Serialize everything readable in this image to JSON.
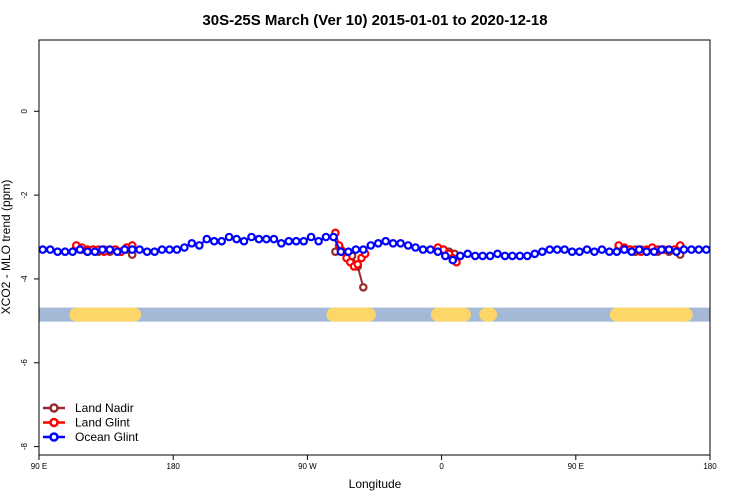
{
  "chart_data": {
    "type": "line",
    "title": "30S-25S March (Ver 10)   2015-01-01 to 2020-12-18",
    "xlabel": "Longitude",
    "ylabel": "XCO2 - MLO trend (ppm)",
    "xlim": [
      90,
      450
    ],
    "ylim": [
      -8.2,
      1.7
    ],
    "x_ticks": [
      {
        "value": 90,
        "label": "90 E"
      },
      {
        "value": 162,
        "label": "180"
      },
      {
        "value": 234,
        "label": "90 W"
      },
      {
        "value": 306,
        "label": "0"
      },
      {
        "value": 378,
        "label": "90 E"
      },
      {
        "value": 450,
        "label": "180"
      }
    ],
    "y_ticks": [
      {
        "value": 0,
        "label": "0"
      },
      {
        "value": -2,
        "label": "-2"
      },
      {
        "value": -4,
        "label": "-4"
      },
      {
        "value": -6,
        "label": "-6"
      },
      {
        "value": -8,
        "label": "-8"
      }
    ],
    "legend_position": "bottom-left",
    "land_band": {
      "y": -4.85,
      "ocean_color": "#a3b9d6",
      "land_color": "#fdd66a",
      "land_segments": [
        [
          110,
          141
        ],
        [
          248,
          267
        ],
        [
          304,
          318
        ],
        [
          330,
          332
        ],
        [
          400,
          437
        ]
      ]
    },
    "series": [
      {
        "name": "Land Nadir",
        "color": "#9a2a2a",
        "x": [
          110,
          113,
          116,
          119,
          122,
          125,
          128,
          131,
          134,
          137,
          140,
          249,
          252,
          255,
          258,
          261,
          264,
          307,
          310,
          313,
          316,
          401,
          404,
          407,
          410,
          413,
          416,
          419,
          422,
          425,
          428,
          431,
          434
        ],
        "y": [
          -3.25,
          -3.3,
          -3.35,
          -3.3,
          -3.35,
          -3.3,
          -3.35,
          -3.3,
          -3.35,
          -3.3,
          -3.42,
          -3.35,
          -3.3,
          -3.4,
          -3.45,
          -3.7,
          -4.2,
          -3.3,
          -3.35,
          -3.4,
          -3.45,
          -3.25,
          -3.3,
          -3.3,
          -3.35,
          -3.3,
          -3.35,
          -3.3,
          -3.35,
          -3.3,
          -3.35,
          -3.3,
          -3.42
        ]
      },
      {
        "name": "Land Glint",
        "color": "#ff0000",
        "x": [
          110,
          113,
          116,
          119,
          122,
          125,
          128,
          131,
          134,
          137,
          140,
          249,
          251,
          253,
          255,
          257,
          259,
          261,
          263,
          265,
          304,
          307,
          310,
          312,
          314,
          401,
          404,
          407,
          410,
          413,
          416,
          419,
          422,
          425,
          428,
          431,
          434
        ],
        "y": [
          -3.2,
          -3.25,
          -3.3,
          -3.3,
          -3.3,
          -3.35,
          -3.3,
          -3.3,
          -3.35,
          -3.25,
          -3.2,
          -2.9,
          -3.2,
          -3.35,
          -3.5,
          -3.6,
          -3.7,
          -3.65,
          -3.5,
          -3.4,
          -3.25,
          -3.3,
          -3.4,
          -3.5,
          -3.6,
          -3.2,
          -3.25,
          -3.3,
          -3.3,
          -3.35,
          -3.3,
          -3.25,
          -3.3,
          -3.3,
          -3.3,
          -3.3,
          -3.2
        ]
      },
      {
        "name": "Ocean Glint",
        "color": "#0000ff",
        "x": [
          92,
          96,
          100,
          104,
          108,
          112,
          116,
          120,
          124,
          128,
          132,
          136,
          140,
          144,
          148,
          152,
          156,
          160,
          164,
          168,
          172,
          176,
          180,
          184,
          188,
          192,
          196,
          200,
          204,
          208,
          212,
          216,
          220,
          224,
          228,
          232,
          236,
          240,
          244,
          248,
          252,
          256,
          260,
          264,
          268,
          272,
          276,
          280,
          284,
          288,
          292,
          296,
          300,
          304,
          308,
          312,
          316,
          320,
          324,
          328,
          332,
          336,
          340,
          344,
          348,
          352,
          356,
          360,
          364,
          368,
          372,
          376,
          380,
          384,
          388,
          392,
          396,
          400,
          404,
          408,
          412,
          416,
          420,
          424,
          428,
          432,
          436,
          440,
          444,
          448
        ],
        "y": [
          -3.3,
          -3.3,
          -3.35,
          -3.35,
          -3.35,
          -3.3,
          -3.35,
          -3.35,
          -3.3,
          -3.3,
          -3.35,
          -3.3,
          -3.3,
          -3.3,
          -3.35,
          -3.35,
          -3.3,
          -3.3,
          -3.3,
          -3.25,
          -3.15,
          -3.2,
          -3.05,
          -3.1,
          -3.1,
          -3.0,
          -3.05,
          -3.1,
          -3.0,
          -3.05,
          -3.05,
          -3.05,
          -3.15,
          -3.1,
          -3.1,
          -3.1,
          -3.0,
          -3.1,
          -3.0,
          -3.0,
          -3.35,
          -3.35,
          -3.3,
          -3.3,
          -3.2,
          -3.15,
          -3.1,
          -3.15,
          -3.15,
          -3.2,
          -3.25,
          -3.3,
          -3.3,
          -3.35,
          -3.45,
          -3.55,
          -3.45,
          -3.4,
          -3.45,
          -3.45,
          -3.45,
          -3.4,
          -3.45,
          -3.45,
          -3.45,
          -3.45,
          -3.4,
          -3.35,
          -3.3,
          -3.3,
          -3.3,
          -3.35,
          -3.35,
          -3.3,
          -3.35,
          -3.3,
          -3.35,
          -3.35,
          -3.3,
          -3.35,
          -3.3,
          -3.35,
          -3.35,
          -3.3,
          -3.3,
          -3.35,
          -3.3,
          -3.3,
          -3.3,
          -3.3
        ]
      }
    ]
  }
}
